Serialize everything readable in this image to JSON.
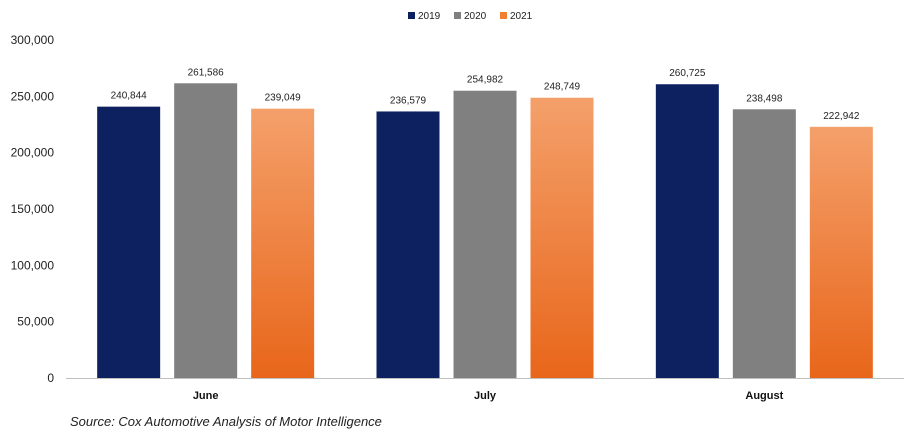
{
  "chart_data": {
    "type": "bar",
    "categories": [
      "June",
      "July",
      "August"
    ],
    "series": [
      {
        "name": "2019",
        "color": "#0d2160",
        "values": [
          240844,
          236579,
          260725
        ]
      },
      {
        "name": "2020",
        "color": "#808080",
        "values": [
          261586,
          254982,
          238498
        ]
      },
      {
        "name": "2021",
        "color": "#ef7a2c",
        "values": [
          239049,
          248749,
          222942
        ]
      }
    ],
    "data_labels": [
      [
        "240,844",
        "236,579",
        "260,725"
      ],
      [
        "261,586",
        "254,982",
        "238,498"
      ],
      [
        "239,049",
        "248,749",
        "222,942"
      ]
    ],
    "ylim": [
      0,
      300000
    ],
    "yticks": [
      0,
      50000,
      100000,
      150000,
      200000,
      250000,
      300000
    ],
    "ytick_labels": [
      "0",
      "50,000",
      "100,000",
      "150,000",
      "200,000",
      "250,000",
      "300,000"
    ],
    "legend_position": "top-center",
    "grid": false
  },
  "source": "Source: Cox Automotive Analysis of Motor Intelligence"
}
